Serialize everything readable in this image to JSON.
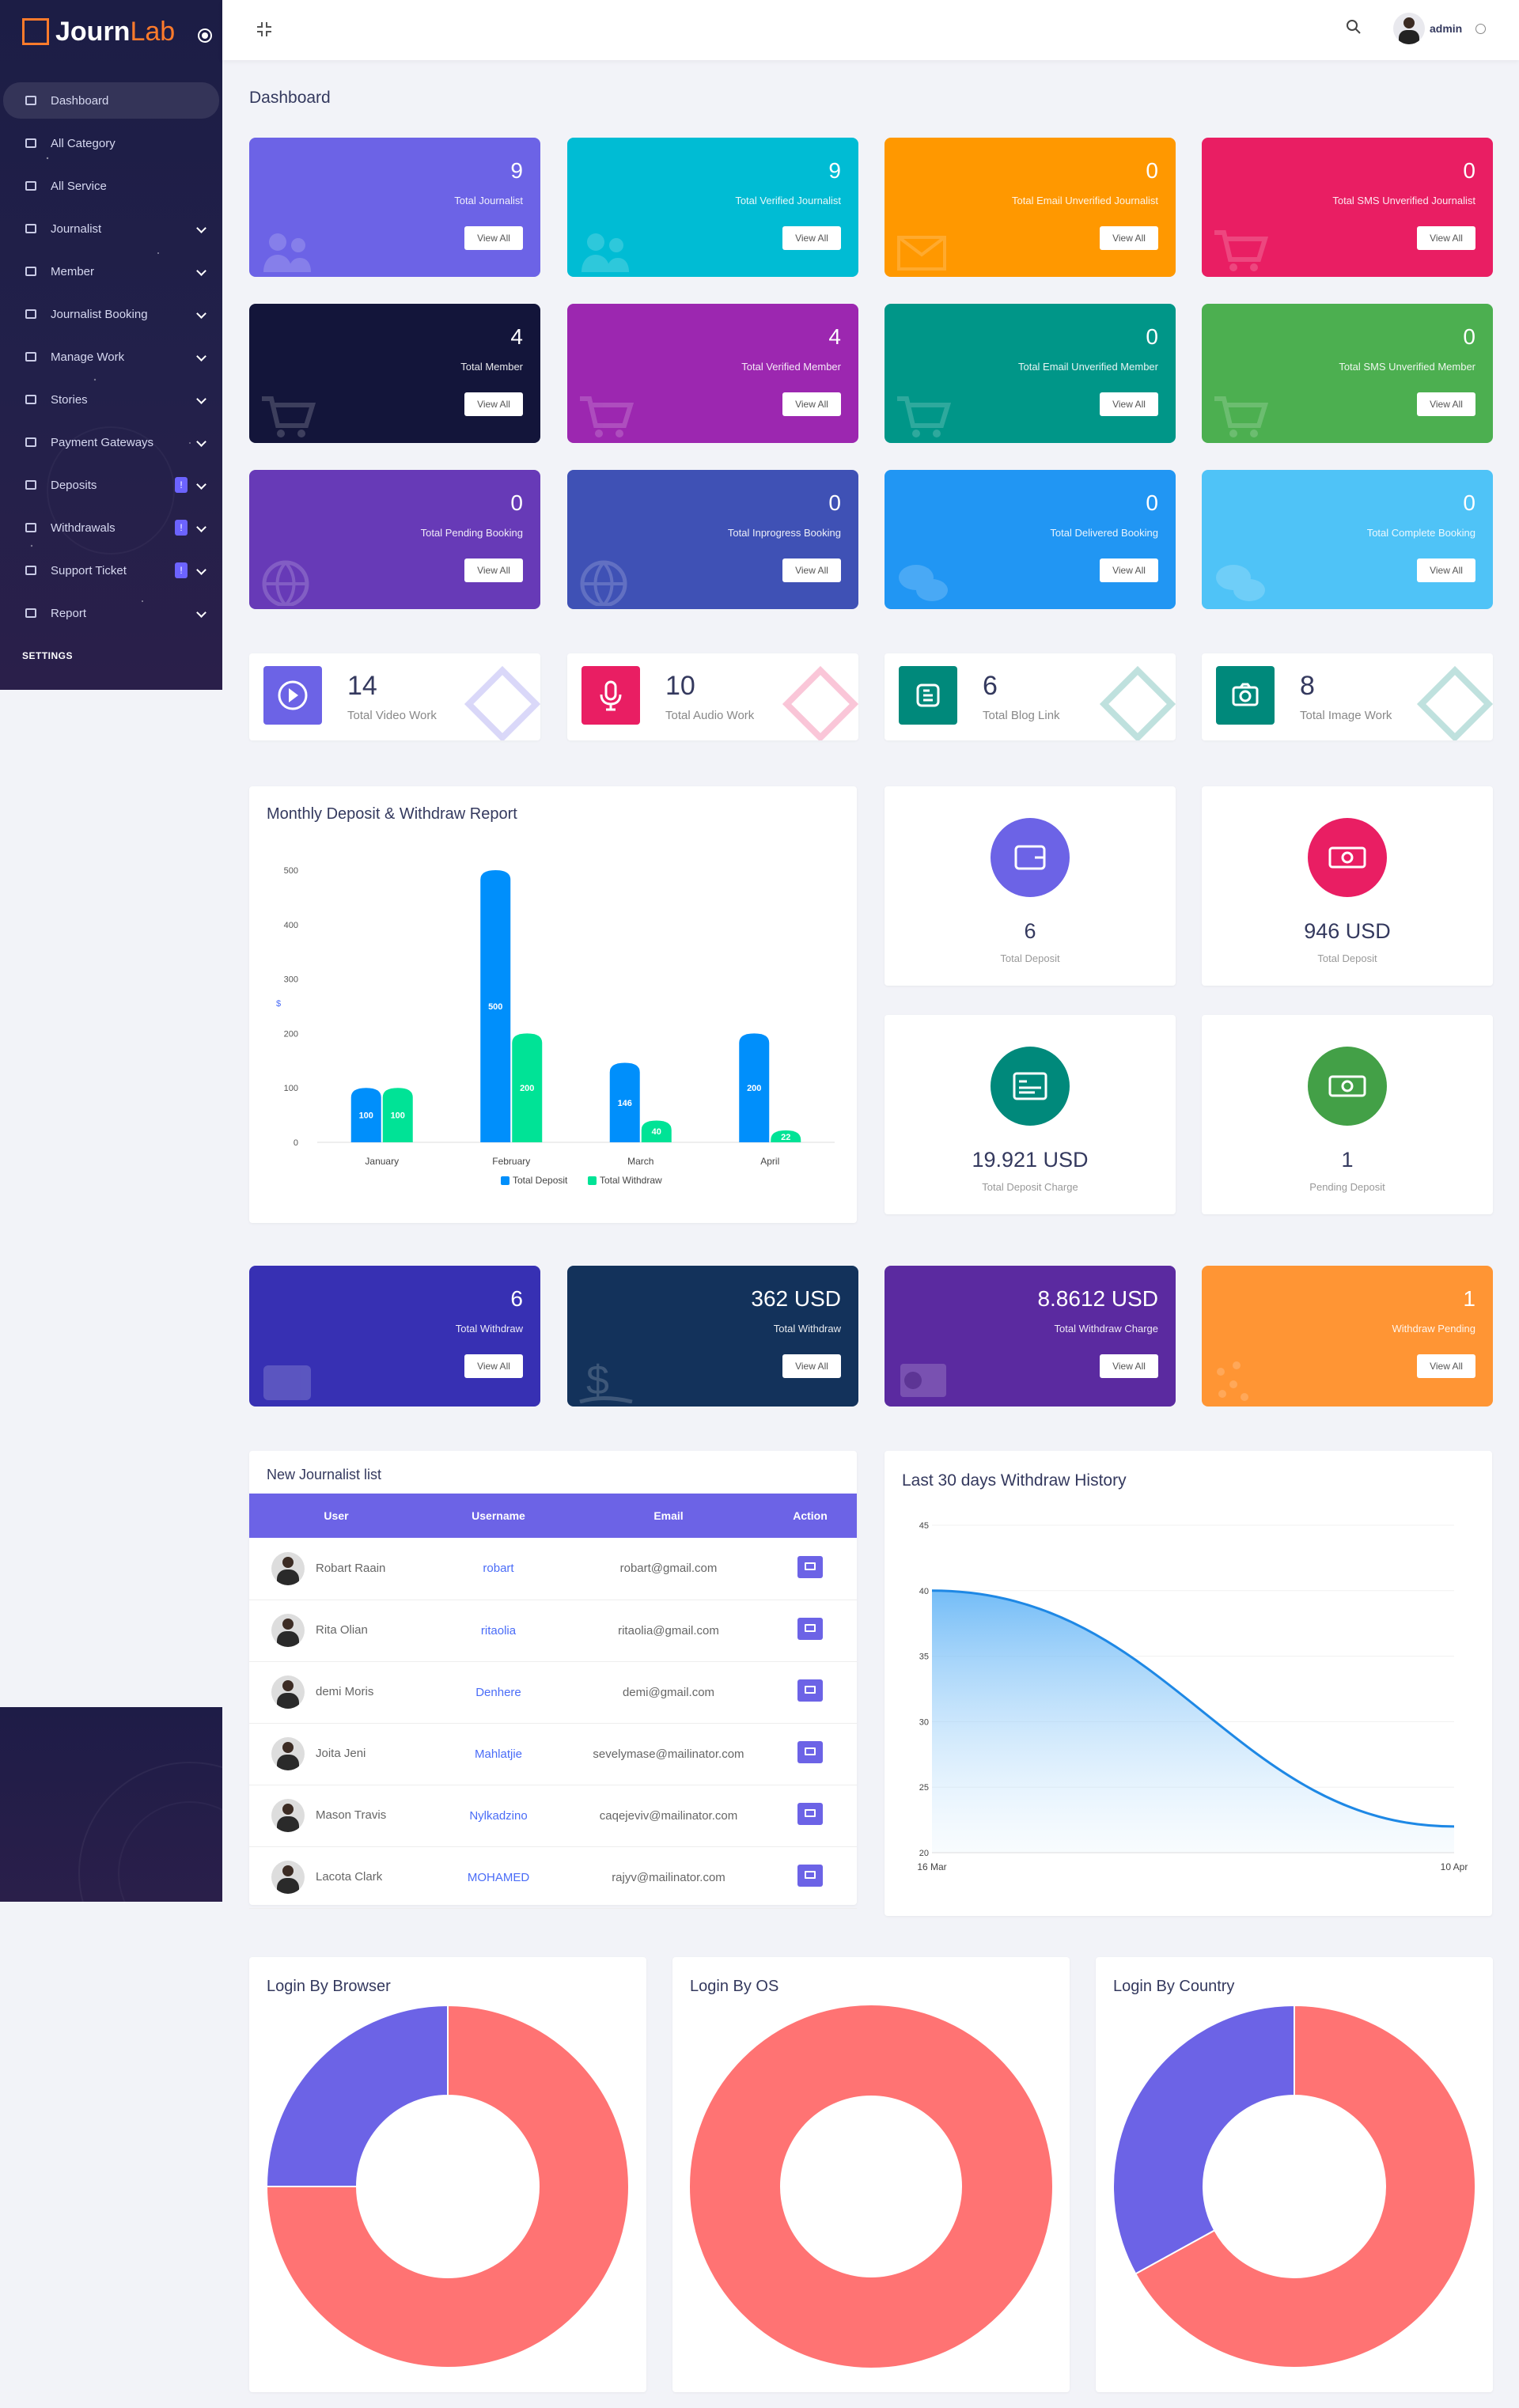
{
  "brand": {
    "part1": "Journ",
    "part2": "Lab"
  },
  "sidebar": {
    "items": [
      {
        "label": "Dashboard",
        "icon": "home-icon",
        "chevron": false,
        "badge": ""
      },
      {
        "label": "All Category",
        "icon": "list-icon",
        "chevron": false,
        "badge": ""
      },
      {
        "label": "All Service",
        "icon": "menu-icon",
        "chevron": false,
        "badge": ""
      },
      {
        "label": "Journalist",
        "icon": "user-icon",
        "chevron": true,
        "badge": ""
      },
      {
        "label": "Member",
        "icon": "users-icon",
        "chevron": true,
        "badge": ""
      },
      {
        "label": "Journalist Booking",
        "icon": "move-icon",
        "chevron": true,
        "badge": ""
      },
      {
        "label": "Manage Work",
        "icon": "grid-icon",
        "chevron": true,
        "badge": ""
      },
      {
        "label": "Stories",
        "icon": "book-icon",
        "chevron": true,
        "badge": ""
      },
      {
        "label": "Payment Gateways",
        "icon": "card-icon",
        "chevron": true,
        "badge": ""
      },
      {
        "label": "Deposits",
        "icon": "wallet-icon",
        "chevron": true,
        "badge": "!"
      },
      {
        "label": "Withdrawals",
        "icon": "bank-icon",
        "chevron": true,
        "badge": "!"
      },
      {
        "label": "Support Ticket",
        "icon": "ticket-icon",
        "chevron": true,
        "badge": "!"
      },
      {
        "label": "Report",
        "icon": "report-icon",
        "chevron": true,
        "badge": ""
      }
    ],
    "section_heading": "SETTINGS"
  },
  "topbar": {
    "user": "admin"
  },
  "page_title": "Dashboard",
  "stat_cards": [
    {
      "value": "9",
      "label": "Total Journalist",
      "button": "View All",
      "color": "#6c63e6",
      "icon": "users-icon"
    },
    {
      "value": "9",
      "label": "Total Verified Journalist",
      "button": "View All",
      "color": "#00bcd4",
      "icon": "users-icon"
    },
    {
      "value": "0",
      "label": "Total Email Unverified Journalist",
      "button": "View All",
      "color": "#ff9800",
      "icon": "envelope-icon"
    },
    {
      "value": "0",
      "label": "Total SMS Unverified Journalist",
      "button": "View All",
      "color": "#e91e63",
      "icon": "cart-icon"
    },
    {
      "value": "4",
      "label": "Total Member",
      "button": "View All",
      "color": "#13153a",
      "icon": "cart-icon"
    },
    {
      "value": "4",
      "label": "Total Verified Member",
      "button": "View All",
      "color": "#9c27b0",
      "icon": "cart-icon"
    },
    {
      "value": "0",
      "label": "Total Email Unverified Member",
      "button": "View All",
      "color": "#009688",
      "icon": "cart-icon"
    },
    {
      "value": "0",
      "label": "Total SMS Unverified Member",
      "button": "View All",
      "color": "#4caf50",
      "icon": "cart-icon"
    },
    {
      "value": "0",
      "label": "Total Pending Booking",
      "button": "View All",
      "color": "#673ab7",
      "icon": "globe-icon"
    },
    {
      "value": "0",
      "label": "Total Inprogress Booking",
      "button": "View All",
      "color": "#3f51b5",
      "icon": "globe-icon"
    },
    {
      "value": "0",
      "label": "Total Delivered Booking",
      "button": "View All",
      "color": "#2196f3",
      "icon": "chat-icon"
    },
    {
      "value": "0",
      "label": "Total Complete Booking",
      "button": "View All",
      "color": "#4fc3f7",
      "icon": "chat-icon"
    }
  ],
  "mini_cards": [
    {
      "value": "14",
      "label": "Total Video Work",
      "color": "#6c63e6",
      "icon": "play-icon"
    },
    {
      "value": "10",
      "label": "Total Audio Work",
      "color": "#e91e63",
      "icon": "microphone-icon"
    },
    {
      "value": "6",
      "label": "Total Blog Link",
      "color": "#00897b",
      "icon": "blog-icon"
    },
    {
      "value": "8",
      "label": "Total Image Work",
      "color": "#00897b",
      "icon": "camera-icon"
    }
  ],
  "monthly_report": {
    "title": "Monthly Deposit & Withdraw Report"
  },
  "deposit_cards": [
    {
      "value": "6",
      "label": "Total Deposit",
      "color": "#6c63e6",
      "icon": "wallet-icon"
    },
    {
      "value": "946 USD",
      "label": "Total Deposit",
      "color": "#e91e63",
      "icon": "money-icon"
    },
    {
      "value": "19.921 USD",
      "label": "Total Deposit Charge",
      "color": "#00897b",
      "icon": "receipt-icon"
    },
    {
      "value": "1",
      "label": "Pending Deposit",
      "color": "#43a047",
      "icon": "money-icon"
    }
  ],
  "withdraw_cards": [
    {
      "value": "6",
      "label": "Total Withdraw",
      "button": "View All",
      "color": "#3730b3",
      "icon": "wallet-icon"
    },
    {
      "value": "362 USD",
      "label": "Total Withdraw",
      "button": "View All",
      "color": "#13325b",
      "icon": "dollar-icon"
    },
    {
      "value": "8.8612 USD",
      "label": "Total Withdraw Charge",
      "button": "View All",
      "color": "#5b2aa0",
      "icon": "money-icon"
    },
    {
      "value": "1",
      "label": "Withdraw Pending",
      "button": "View All",
      "color": "#ff9534",
      "icon": "dots-icon"
    }
  ],
  "journalist_list": {
    "title": "New Journalist list",
    "headers": [
      "User",
      "Username",
      "Email",
      "Action"
    ],
    "rows": [
      {
        "user": "Robart Raain",
        "username": "robart",
        "email": "robart@gmail.com"
      },
      {
        "user": "Rita Olian",
        "username": "ritaolia",
        "email": "ritaolia@gmail.com"
      },
      {
        "user": "demi Moris",
        "username": "Denhere",
        "email": "demi@gmail.com"
      },
      {
        "user": "Joita Jeni",
        "username": "Mahlatjie",
        "email": "sevelymase@mailinator.com"
      },
      {
        "user": "Mason Travis",
        "username": "Nylkadzino",
        "email": "caqejeviv@mailinator.com"
      },
      {
        "user": "Lacota Clark",
        "username": "MOHAMED",
        "email": "rajyv@mailinator.com"
      }
    ]
  },
  "withdraw_history": {
    "title": "Last 30 days Withdraw History"
  },
  "login_charts": [
    {
      "title": "Login By Browser"
    },
    {
      "title": "Login By OS"
    },
    {
      "title": "Login By Country"
    }
  ],
  "chart_data": [
    {
      "type": "bar",
      "title": "Monthly Deposit & Withdraw Report",
      "categories": [
        "January",
        "February",
        "March",
        "April"
      ],
      "series": [
        {
          "name": "Total Deposit",
          "values": [
            100,
            500,
            146,
            200
          ],
          "color": "#008ffb"
        },
        {
          "name": "Total Withdraw",
          "values": [
            100,
            200,
            40,
            22
          ],
          "color": "#00e396"
        }
      ],
      "ylabel": "$",
      "ylim": [
        0,
        500
      ],
      "yticks": [
        0,
        100,
        200,
        300,
        400,
        500
      ],
      "legend": "bottom"
    },
    {
      "type": "area",
      "title": "Last 30 days Withdraw History",
      "x": [
        "16 Mar",
        "10 Apr"
      ],
      "y": [
        40,
        22
      ],
      "ylim": [
        20,
        45
      ],
      "yticks": [
        20,
        25,
        30,
        35,
        40,
        45
      ],
      "color": "#1e88e5"
    },
    {
      "type": "pie",
      "title": "Login By Browser",
      "values": [
        75,
        25
      ],
      "colors": [
        "#ff7373",
        "#6c63e6"
      ]
    },
    {
      "type": "pie",
      "title": "Login By OS",
      "values": [
        100
      ],
      "colors": [
        "#ff7373"
      ]
    },
    {
      "type": "pie",
      "title": "Login By Country",
      "values": [
        67,
        33
      ],
      "colors": [
        "#ff7373",
        "#6c63e6"
      ]
    }
  ]
}
